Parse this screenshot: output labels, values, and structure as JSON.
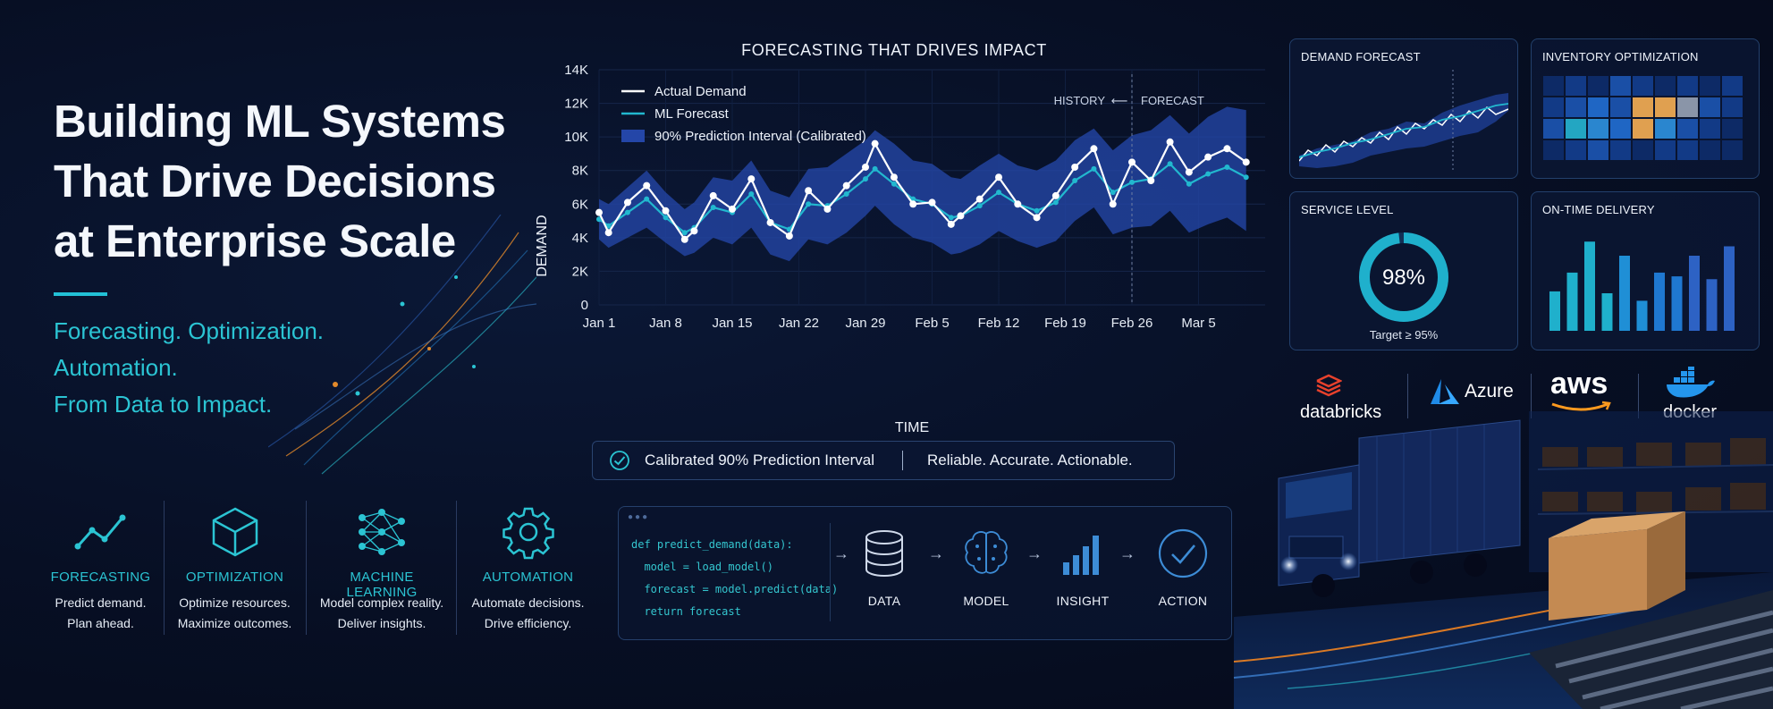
{
  "hero": {
    "title_lines": [
      "Building ML Systems",
      "That Drive Decisions",
      "at Enterprise Scale"
    ],
    "subtitle_lines": [
      "Forecasting. Optimization.",
      "Automation.",
      "From Data to Impact."
    ],
    "accent_color": "#22c1d6"
  },
  "pillars": [
    {
      "icon": "trend-line-icon",
      "title": "FORECASTING",
      "line1": "Predict demand.",
      "line2": "Plan ahead."
    },
    {
      "icon": "cube-icon",
      "title": "OPTIMIZATION",
      "line1": "Optimize resources.",
      "line2": "Maximize outcomes."
    },
    {
      "icon": "neural-network-icon",
      "title": "MACHINE LEARNING",
      "line1": "Model complex reality.",
      "line2": "Deliver insights."
    },
    {
      "icon": "gear-icon",
      "title": "AUTOMATION",
      "line1": "Automate decisions.",
      "line2": "Drive efficiency."
    }
  ],
  "chart_data": {
    "type": "line",
    "title": "FORECASTING THAT DRIVES IMPACT",
    "xlabel": "TIME",
    "ylabel": "DEMAND",
    "ylim": [
      0,
      14000
    ],
    "yticks": [
      "0",
      "2K",
      "4K",
      "6K",
      "8K",
      "10K",
      "12K",
      "14K"
    ],
    "xticks": [
      "Jan 1",
      "Jan 8",
      "Jan 15",
      "Jan 22",
      "Jan 29",
      "Feb 5",
      "Feb 12",
      "Feb 19",
      "Feb 26",
      "Mar 5"
    ],
    "history_label": "HISTORY",
    "forecast_label": "FORECAST",
    "split_day": 56,
    "legend": {
      "position": "top-left",
      "actual": "Actual Demand",
      "forecast": "ML Forecast",
      "interval": "90% Prediction Interval (Calibrated)"
    },
    "colors": {
      "actual": "#ffffff",
      "forecast": "#22b8cf",
      "interval": "#2446a8"
    },
    "days": [
      0,
      1,
      3,
      5,
      7,
      9,
      10,
      12,
      14,
      16,
      18,
      20,
      22,
      24,
      26,
      28,
      29,
      31,
      33,
      35,
      37,
      38,
      40,
      42,
      44,
      46,
      48,
      50,
      52,
      54,
      56,
      58,
      60,
      62,
      64,
      66,
      68
    ],
    "actual": [
      5500,
      4300,
      6100,
      7100,
      5600,
      3900,
      4400,
      6500,
      5700,
      7500,
      4900,
      4100,
      6800,
      5700,
      7100,
      8200,
      9600,
      7600,
      6000,
      6100,
      4800,
      5300,
      6300,
      7600,
      6000,
      5200,
      6500,
      8200,
      9300,
      6000,
      8500,
      7400,
      9700,
      7900,
      8800,
      9300,
      8500
    ],
    "forecast": [
      5100,
      4700,
      5500,
      6300,
      5200,
      4300,
      4600,
      5800,
      5500,
      6600,
      4900,
      4500,
      6000,
      5900,
      6600,
      7500,
      8100,
      7200,
      6300,
      6000,
      5200,
      5300,
      5900,
      6700,
      6000,
      5600,
      6100,
      7400,
      8100,
      6700,
      7300,
      7500,
      8400,
      7200,
      7800,
      8200,
      7600
    ],
    "interval_lower": [
      3900,
      3400,
      4000,
      4600,
      3700,
      2900,
      3100,
      4000,
      3600,
      4600,
      3000,
      2600,
      3900,
      3600,
      4300,
      5300,
      5900,
      4800,
      4000,
      3700,
      3000,
      3100,
      3600,
      4400,
      3800,
      3400,
      3800,
      5000,
      5800,
      4200,
      4600,
      4700,
      5600,
      4300,
      4800,
      5200,
      4400
    ],
    "interval_upper": [
      6300,
      6000,
      7000,
      8000,
      6700,
      5700,
      6100,
      7600,
      7400,
      8600,
      6800,
      6400,
      8100,
      8200,
      9000,
      9800,
      10400,
      9600,
      8600,
      8400,
      7600,
      7500,
      8300,
      9000,
      8300,
      8000,
      8600,
      9800,
      10500,
      9200,
      10100,
      10400,
      11300,
      10200,
      11200,
      11800,
      11600
    ]
  },
  "badge": {
    "text1": "Calibrated 90% Prediction Interval",
    "text2": "Reliable. Accurate. Actionable."
  },
  "pipeline": {
    "code_lines": [
      "def predict_demand(data):",
      "  model = load_model()",
      "  forecast = model.predict(data)",
      "  return forecast"
    ],
    "steps": [
      {
        "icon": "database-icon",
        "label": "DATA"
      },
      {
        "icon": "brain-icon",
        "label": "MODEL"
      },
      {
        "icon": "bar-chart-icon",
        "label": "INSIGHT"
      },
      {
        "icon": "check-circle-icon",
        "label": "ACTION"
      }
    ]
  },
  "kpis": {
    "demand_forecast": {
      "title": "DEMAND FORECAST"
    },
    "inventory": {
      "title": "INVENTORY OPTIMIZATION"
    },
    "service_level": {
      "title": "SERVICE LEVEL",
      "value": "98%",
      "fraction": 0.98,
      "target": "Target ≥ 95%"
    },
    "on_time": {
      "title": "ON-TIME DELIVERY",
      "bars": [
        0.42,
        0.62,
        0.95,
        0.4,
        0.8,
        0.32,
        0.62,
        0.58,
        0.8,
        0.55,
        0.9
      ]
    }
  },
  "logos": [
    {
      "icon": "databricks-logo",
      "name": "databricks"
    },
    {
      "icon": "azure-logo",
      "name": "Azure"
    },
    {
      "icon": "aws-logo",
      "name": "aws"
    },
    {
      "icon": "docker-logo",
      "name": "docker"
    }
  ]
}
